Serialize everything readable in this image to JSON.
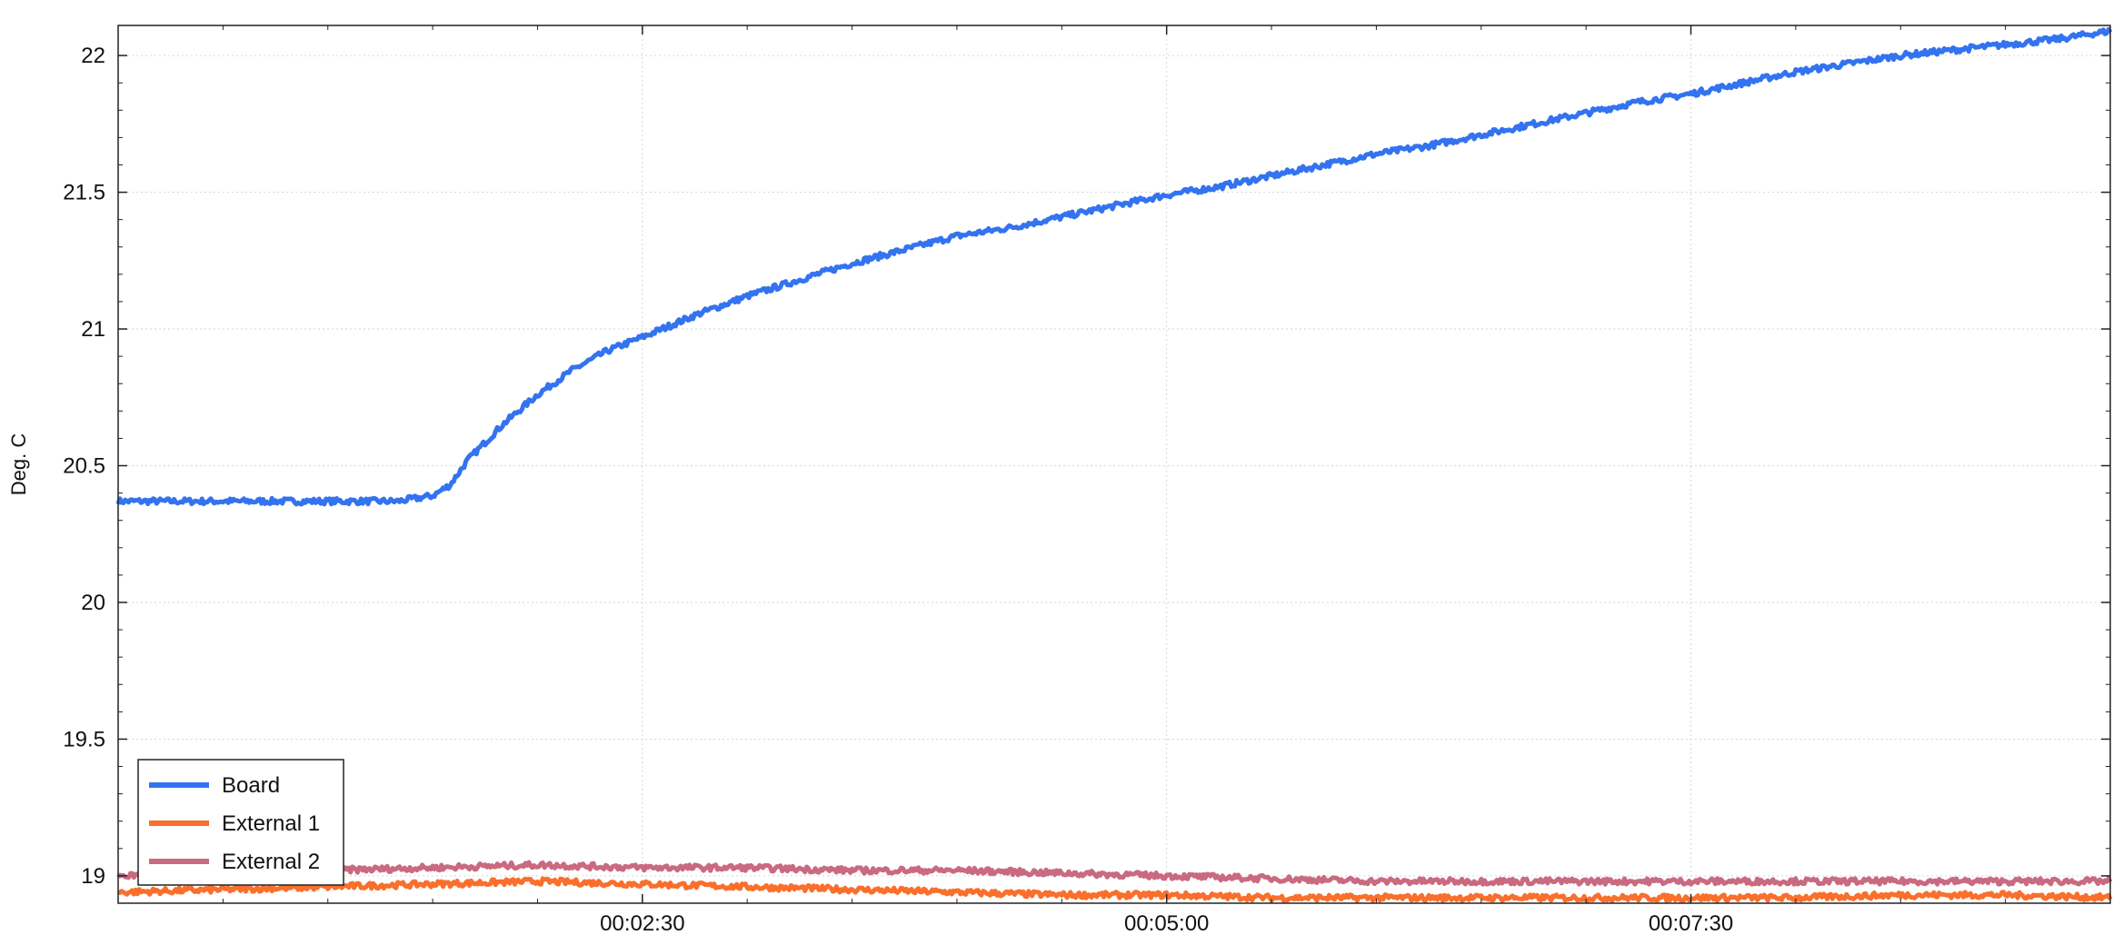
{
  "chart_data": {
    "type": "line",
    "title": "",
    "xlabel": "",
    "ylabel": "Deg. C",
    "x_unit": "seconds",
    "xlim": [
      0,
      570
    ],
    "ylim": [
      18.9,
      22.11
    ],
    "x_ticks": [
      {
        "value": 150,
        "label": "00:02:30"
      },
      {
        "value": 300,
        "label": "00:05:00"
      },
      {
        "value": 450,
        "label": "00:07:30"
      }
    ],
    "y_ticks": [
      {
        "value": 19,
        "label": "19"
      },
      {
        "value": 19.5,
        "label": "19.5"
      },
      {
        "value": 20,
        "label": "20"
      },
      {
        "value": 20.5,
        "label": "20.5"
      },
      {
        "value": 21,
        "label": "21"
      },
      {
        "value": 21.5,
        "label": "21.5"
      },
      {
        "value": 22,
        "label": "22"
      }
    ],
    "grid": true,
    "legend_position": "bottom-left",
    "series": [
      {
        "name": "Board",
        "color": "#3373f0",
        "x": [
          0,
          30,
          60,
          80,
          90,
          95,
          100,
          110,
          120,
          130,
          140,
          150,
          165,
          180,
          195,
          210,
          225,
          240,
          255,
          270,
          285,
          300,
          315,
          330,
          345,
          360,
          375,
          390,
          405,
          420,
          435,
          450,
          465,
          480,
          495,
          510,
          525,
          540,
          555,
          570
        ],
        "values": [
          20.37,
          20.37,
          20.37,
          20.37,
          20.39,
          20.43,
          20.52,
          20.65,
          20.76,
          20.85,
          20.92,
          20.97,
          21.05,
          21.12,
          21.18,
          21.24,
          21.29,
          21.34,
          21.37,
          21.41,
          21.45,
          21.49,
          21.52,
          21.56,
          21.6,
          21.64,
          21.67,
          21.71,
          21.75,
          21.79,
          21.83,
          21.86,
          21.9,
          21.94,
          21.97,
          22.0,
          22.02,
          22.04,
          22.06,
          22.09
        ]
      },
      {
        "name": "External 1",
        "color": "#f96f2b",
        "x": [
          0,
          30,
          60,
          90,
          120,
          150,
          180,
          210,
          240,
          270,
          300,
          330,
          360,
          390,
          420,
          450,
          480,
          510,
          540,
          570
        ],
        "values": [
          18.94,
          18.95,
          18.96,
          18.97,
          18.98,
          18.97,
          18.96,
          18.95,
          18.94,
          18.93,
          18.93,
          18.92,
          18.92,
          18.92,
          18.92,
          18.92,
          18.92,
          18.93,
          18.93,
          18.92
        ]
      },
      {
        "name": "External 2",
        "color": "#c96a80",
        "x": [
          0,
          30,
          60,
          90,
          120,
          150,
          180,
          210,
          240,
          270,
          300,
          330,
          360,
          390,
          420,
          450,
          480,
          510,
          540,
          570
        ],
        "values": [
          19.0,
          19.01,
          19.02,
          19.03,
          19.04,
          19.03,
          19.03,
          19.02,
          19.02,
          19.01,
          19.0,
          18.99,
          18.98,
          18.98,
          18.98,
          18.98,
          18.98,
          18.98,
          18.98,
          18.98
        ]
      }
    ]
  }
}
